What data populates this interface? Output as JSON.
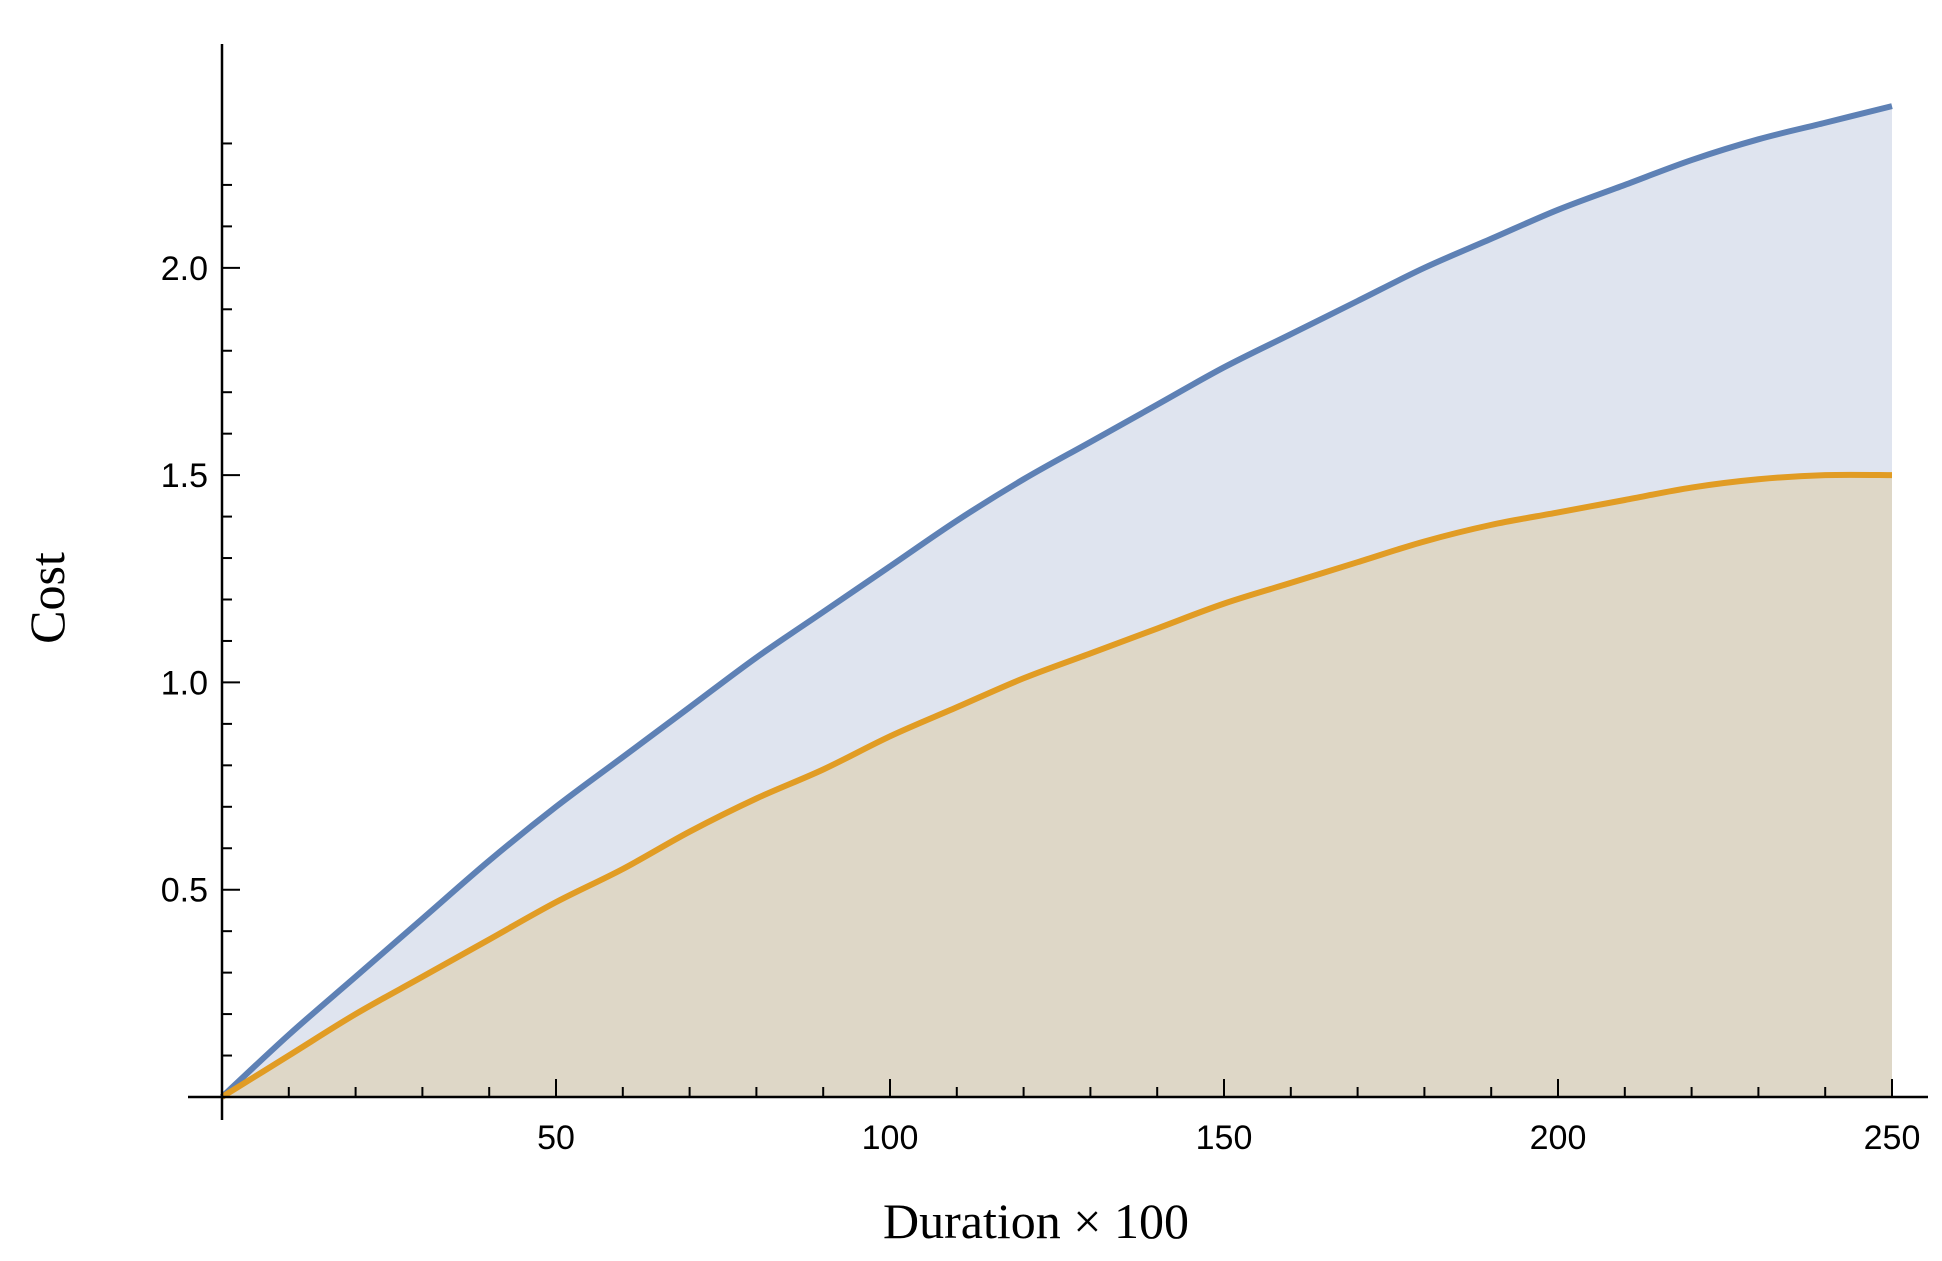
{
  "chart_data": {
    "type": "area",
    "xlabel": "Duration × 100",
    "ylabel": "Cost",
    "xlim": [
      0,
      250
    ],
    "ylim": [
      0,
      2.4
    ],
    "x_ticks": [
      {
        "value": 50,
        "label": "50"
      },
      {
        "value": 100,
        "label": "100"
      },
      {
        "value": 150,
        "label": "150"
      },
      {
        "value": 200,
        "label": "200"
      },
      {
        "value": 250,
        "label": "250"
      }
    ],
    "y_ticks": [
      {
        "value": 0.5,
        "label": "0.5"
      },
      {
        "value": 1.0,
        "label": "1.0"
      },
      {
        "value": 1.5,
        "label": "1.5"
      },
      {
        "value": 2.0,
        "label": "2.0"
      }
    ],
    "x_minor_step": 10,
    "y_minor_step": 0.1,
    "grid": false,
    "legend": "none",
    "series": [
      {
        "color": "#5e81b5",
        "fill": "#dfe4ef",
        "x": [
          0,
          10,
          20,
          30,
          40,
          50,
          60,
          70,
          80,
          90,
          100,
          110,
          120,
          130,
          140,
          150,
          160,
          170,
          180,
          190,
          200,
          210,
          220,
          230,
          240,
          250
        ],
        "values": [
          0,
          0.15,
          0.29,
          0.43,
          0.57,
          0.7,
          0.82,
          0.94,
          1.06,
          1.17,
          1.28,
          1.39,
          1.49,
          1.58,
          1.67,
          1.76,
          1.84,
          1.92,
          2.0,
          2.07,
          2.14,
          2.2,
          2.26,
          2.31,
          2.35,
          2.39
        ]
      },
      {
        "color": "#e19c24",
        "fill": "#ded7c7",
        "x": [
          0,
          10,
          20,
          30,
          40,
          50,
          60,
          70,
          80,
          90,
          100,
          110,
          120,
          130,
          140,
          150,
          160,
          170,
          180,
          190,
          200,
          210,
          220,
          230,
          240,
          250
        ],
        "values": [
          0,
          0.1,
          0.2,
          0.29,
          0.38,
          0.47,
          0.55,
          0.64,
          0.72,
          0.79,
          0.87,
          0.94,
          1.01,
          1.07,
          1.13,
          1.19,
          1.24,
          1.29,
          1.34,
          1.38,
          1.41,
          1.44,
          1.47,
          1.49,
          1.5,
          1.5
        ]
      }
    ]
  }
}
